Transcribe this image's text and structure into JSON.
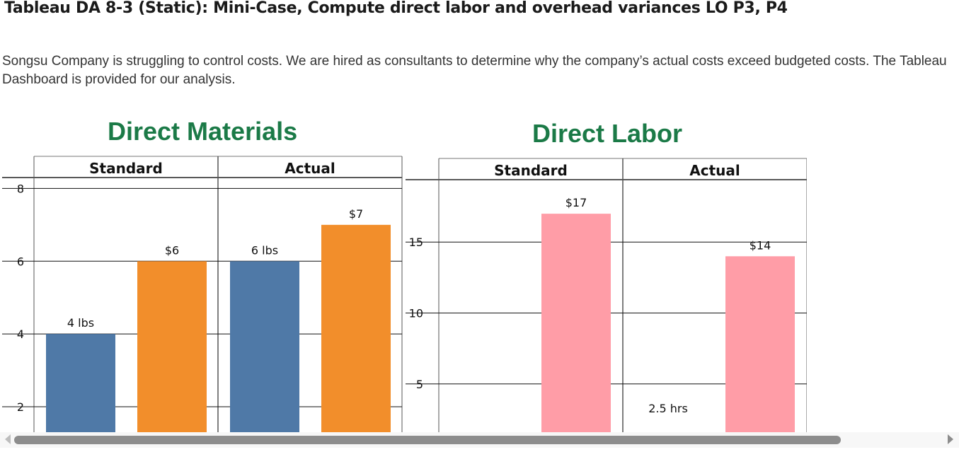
{
  "page": {
    "title": "Tableau DA 8-3 (Static): Mini-Case, Compute direct labor and overhead variances LO P3, P4",
    "intro": "Songsu Company is struggling to control costs. We are hired as consultants to determine why the company’s actual costs exceed budgeted costs. The Tableau Dashboard is provided for our analysis."
  },
  "colors": {
    "quantity_bar": "#4f79a7",
    "price_bar": "#f28e2b",
    "labor_bar": "#ff9da7",
    "panel_title": "#1b7a47"
  },
  "chart_data": [
    {
      "type": "bar",
      "title": "Direct Materials",
      "panels": [
        "Standard",
        "Actual"
      ],
      "yticks": [
        "8",
        "6",
        "4",
        "2"
      ],
      "ylim": [
        1.3,
        8.3
      ],
      "grid": true,
      "bars": [
        {
          "panel": "Standard",
          "series": "quantity",
          "value": 4,
          "label": "4 lbs"
        },
        {
          "panel": "Standard",
          "series": "price",
          "value": 6,
          "label": "$6"
        },
        {
          "panel": "Actual",
          "series": "quantity",
          "value": 6,
          "label": "6 lbs"
        },
        {
          "panel": "Actual",
          "series": "price",
          "value": 7,
          "label": "$7"
        }
      ]
    },
    {
      "type": "bar",
      "title": "Direct Labor",
      "panels": [
        "Standard",
        "Actual"
      ],
      "yticks": [
        "15",
        "10",
        "5"
      ],
      "ylim": [
        1.6,
        19.4
      ],
      "grid": true,
      "bars": [
        {
          "panel": "Standard",
          "series": "rate",
          "value": 17,
          "label": "$17"
        },
        {
          "panel": "Actual",
          "series": "hours",
          "value": 2.5,
          "label": "2.5 hrs"
        },
        {
          "panel": "Actual",
          "series": "rate",
          "value": 14,
          "label": "$14"
        }
      ]
    }
  ]
}
